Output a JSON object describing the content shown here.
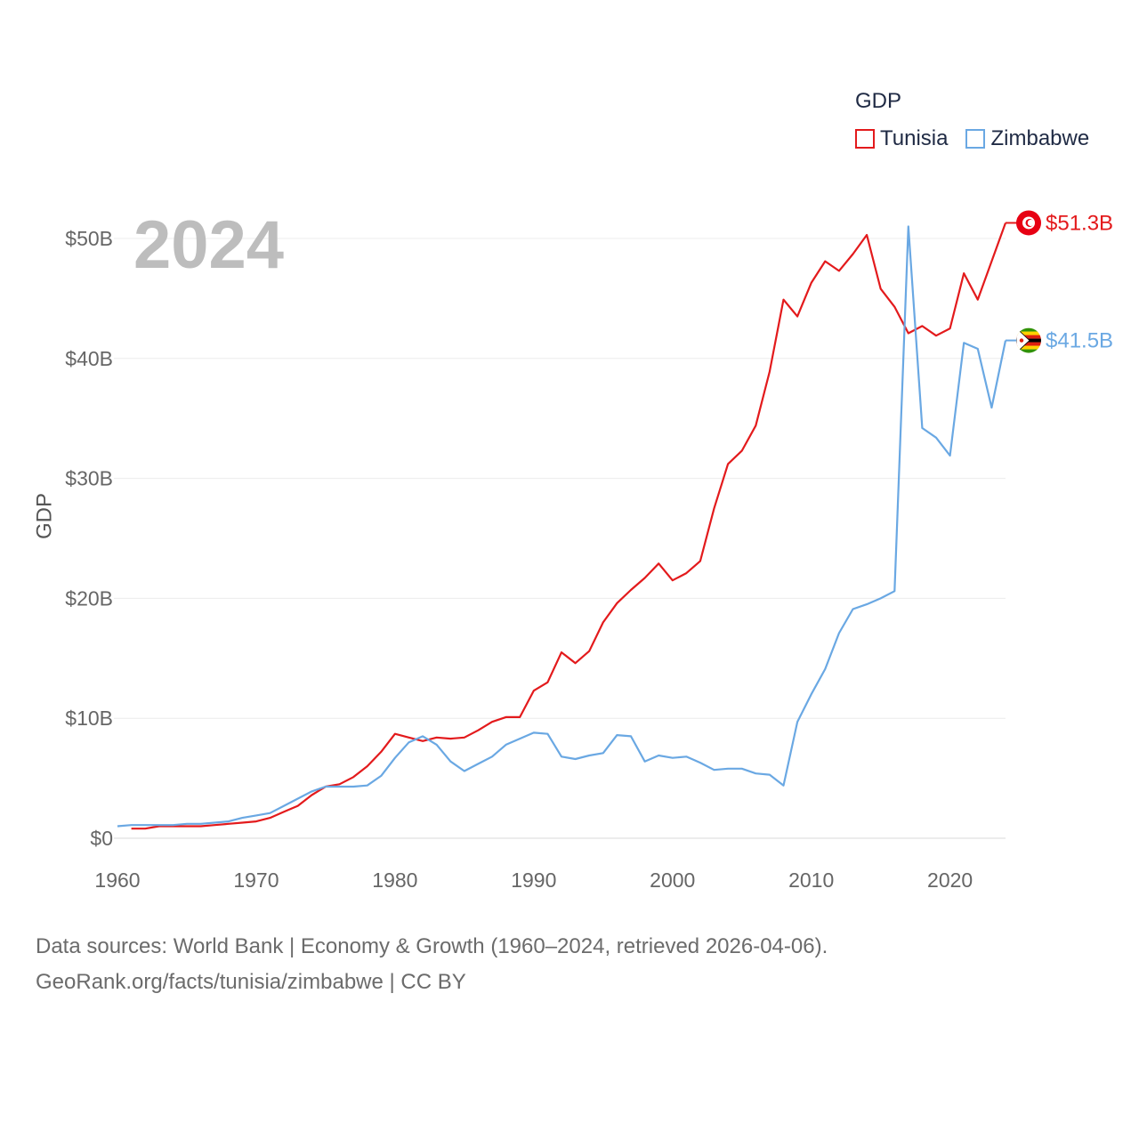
{
  "source": {
    "line1": "Data sources: World Bank | Economy & Growth (1960–2024, retrieved 2026-04-06).",
    "line2": "GeoRank.org/facts/tunisia/zimbabwe | CC BY"
  },
  "chart_data": {
    "type": "line",
    "title": "",
    "legend_title": "GDP",
    "legend_position": "top-right",
    "year_watermark": "2024",
    "xlabel": "",
    "ylabel": "GDP",
    "xlim": [
      1960,
      2024
    ],
    "ylim": [
      0,
      55
    ],
    "grid": true,
    "x_ticks": [
      1960,
      1970,
      1980,
      1990,
      2000,
      2010,
      2020
    ],
    "x_tick_labels": [
      "1960",
      "1970",
      "1980",
      "1990",
      "2000",
      "2010",
      "2020"
    ],
    "y_ticks": [
      0,
      10,
      20,
      30,
      40,
      50
    ],
    "y_tick_labels": [
      "$0",
      "$10B",
      "$20B",
      "$30B",
      "$40B",
      "$50B"
    ],
    "units": "billions USD",
    "series": [
      {
        "name": "Tunisia",
        "color": "#e31a1c",
        "end_label": "$51.3B",
        "flag_icon": "tunisia-flag-icon",
        "x": [
          1961,
          1962,
          1963,
          1964,
          1965,
          1966,
          1967,
          1968,
          1969,
          1970,
          1971,
          1972,
          1973,
          1974,
          1975,
          1976,
          1977,
          1978,
          1979,
          1980,
          1981,
          1982,
          1983,
          1984,
          1985,
          1986,
          1987,
          1988,
          1989,
          1990,
          1991,
          1992,
          1993,
          1994,
          1995,
          1996,
          1997,
          1998,
          1999,
          2000,
          2001,
          2002,
          2003,
          2004,
          2005,
          2006,
          2007,
          2008,
          2009,
          2010,
          2011,
          2012,
          2013,
          2014,
          2015,
          2016,
          2017,
          2018,
          2019,
          2020,
          2021,
          2022,
          2023,
          2024
        ],
        "values": [
          0.8,
          0.8,
          1.0,
          1.0,
          1.0,
          1.0,
          1.1,
          1.2,
          1.3,
          1.4,
          1.7,
          2.2,
          2.7,
          3.6,
          4.3,
          4.5,
          5.1,
          6.0,
          7.2,
          8.7,
          8.4,
          8.1,
          8.4,
          8.3,
          8.4,
          9.0,
          9.7,
          10.1,
          10.1,
          12.3,
          13.0,
          15.5,
          14.6,
          15.6,
          18.0,
          19.6,
          20.7,
          21.7,
          22.9,
          21.5,
          22.1,
          23.1,
          27.5,
          31.2,
          32.3,
          34.4,
          38.9,
          44.9,
          43.5,
          46.3,
          48.1,
          47.3,
          48.7,
          50.3,
          45.8,
          44.3,
          42.1,
          42.7,
          41.9,
          42.5,
          47.1,
          44.9,
          48.1,
          51.3
        ]
      },
      {
        "name": "Zimbabwe",
        "color": "#6aa8e3",
        "end_label": "$41.5B",
        "flag_icon": "zimbabwe-flag-icon",
        "x": [
          1960,
          1961,
          1962,
          1963,
          1964,
          1965,
          1966,
          1967,
          1968,
          1969,
          1970,
          1971,
          1972,
          1973,
          1974,
          1975,
          1976,
          1977,
          1978,
          1979,
          1980,
          1981,
          1982,
          1983,
          1984,
          1985,
          1986,
          1987,
          1988,
          1989,
          1990,
          1991,
          1992,
          1993,
          1994,
          1995,
          1996,
          1997,
          1998,
          1999,
          2000,
          2001,
          2002,
          2003,
          2004,
          2005,
          2006,
          2007,
          2008,
          2009,
          2010,
          2011,
          2012,
          2013,
          2014,
          2015,
          2016,
          2017,
          2018,
          2019,
          2020,
          2021,
          2022,
          2023,
          2024
        ],
        "values": [
          1.0,
          1.1,
          1.1,
          1.1,
          1.1,
          1.2,
          1.2,
          1.3,
          1.4,
          1.7,
          1.9,
          2.1,
          2.7,
          3.3,
          3.9,
          4.3,
          4.3,
          4.3,
          4.4,
          5.2,
          6.7,
          8.0,
          8.5,
          7.8,
          6.4,
          5.6,
          6.2,
          6.8,
          7.8,
          8.3,
          8.8,
          8.7,
          6.8,
          6.6,
          6.9,
          7.1,
          8.6,
          8.5,
          6.4,
          6.9,
          6.7,
          6.8,
          6.3,
          5.7,
          5.8,
          5.8,
          5.4,
          5.3,
          4.4,
          9.7,
          12.0,
          14.1,
          17.1,
          19.1,
          19.5,
          20.0,
          20.6,
          51.0,
          34.2,
          33.4,
          31.9,
          41.3,
          40.8,
          35.9,
          41.5
        ]
      }
    ]
  }
}
